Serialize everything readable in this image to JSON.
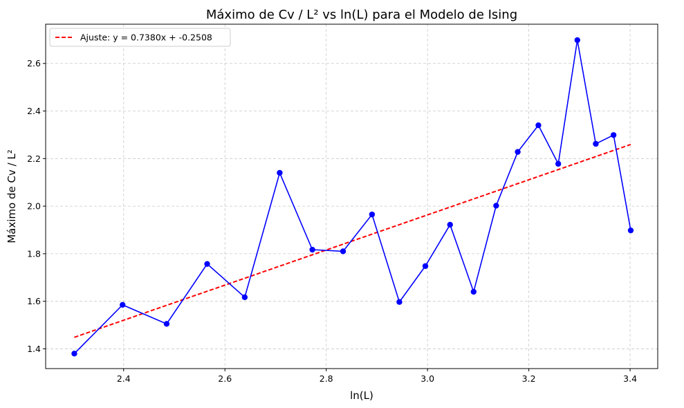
{
  "chart_data": {
    "type": "line",
    "title": "Máximo de Cv / L² vs ln(L) para el Modelo de Ising",
    "xlabel": "ln(L)",
    "ylabel": "Máximo de Cv / L²",
    "xlim": [
      2.246,
      3.4545
    ],
    "ylim": [
      1.317,
      2.765
    ],
    "xticks": [
      2.4,
      2.6,
      2.8,
      3.0,
      3.2,
      3.4
    ],
    "xtick_labels": [
      "2.4",
      "2.6",
      "2.8",
      "3.0",
      "3.2",
      "3.4"
    ],
    "yticks": [
      1.4,
      1.6,
      1.8,
      2.0,
      2.2,
      2.4,
      2.6
    ],
    "ytick_labels": [
      "1.4",
      "1.6",
      "1.8",
      "2.0",
      "2.2",
      "2.4",
      "2.6"
    ],
    "grid": true,
    "legend": {
      "position": "top-left",
      "label": "Ajuste: y = 0.7380x + -0.2508"
    },
    "series": [
      {
        "color": "#0000ff",
        "style": "solid line with circle markers",
        "x": [
          2.3026,
          2.3979,
          2.4849,
          2.5649,
          2.6391,
          2.7081,
          2.7726,
          2.8332,
          2.8904,
          2.9444,
          2.9957,
          3.0445,
          3.091,
          3.1355,
          3.1781,
          3.2189,
          3.2581,
          3.2958,
          3.3322,
          3.3673,
          3.4012
        ],
        "y": [
          1.38,
          1.585,
          1.505,
          1.757,
          1.617,
          2.14,
          1.817,
          1.81,
          1.965,
          1.597,
          1.748,
          1.922,
          1.64,
          2.002,
          2.228,
          2.34,
          2.178,
          2.698,
          2.262,
          2.299,
          1.898
        ]
      },
      {
        "name": "Ajuste: y = 0.7380x + -0.2508",
        "color": "#ff0000",
        "style": "dashed",
        "x": [
          2.3026,
          3.4012
        ],
        "y": [
          1.4485,
          2.2593
        ]
      }
    ]
  }
}
